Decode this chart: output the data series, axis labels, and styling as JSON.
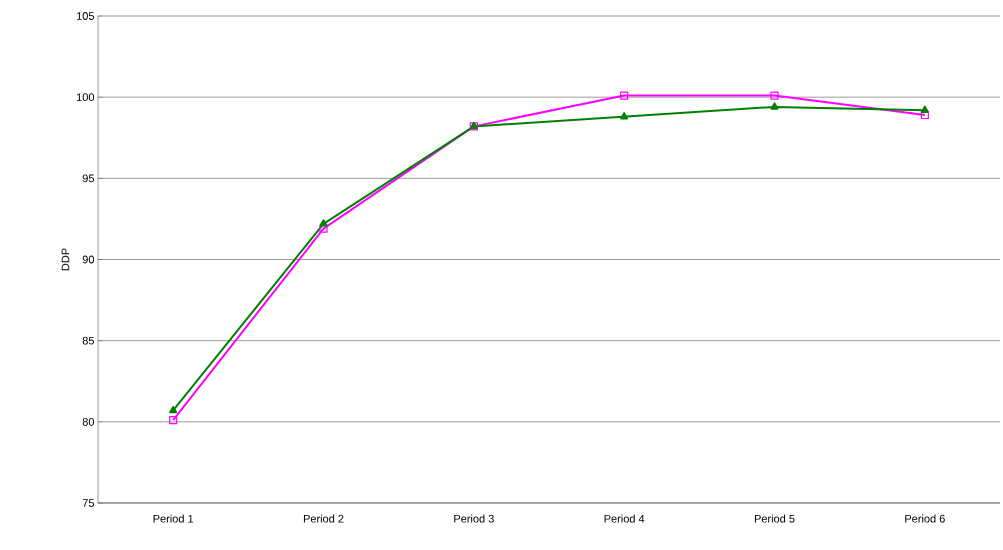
{
  "chart_data": {
    "type": "line",
    "ylabel": "DDP",
    "categories": [
      "Period 1",
      "Period 2",
      "Period 3",
      "Period 4",
      "Period 5",
      "Period 6"
    ],
    "series": [
      {
        "color": "#ff00ff",
        "marker": "square",
        "values": [
          80.1,
          91.9,
          98.2,
          100.1,
          100.1,
          98.9
        ]
      },
      {
        "color": "#008000",
        "marker": "triangle",
        "values": [
          80.7,
          92.2,
          98.2,
          98.8,
          99.4,
          99.2
        ]
      }
    ],
    "ylim": [
      75,
      105
    ],
    "yticks": [
      75,
      80,
      85,
      90,
      95,
      100,
      105
    ],
    "grid": "y"
  }
}
